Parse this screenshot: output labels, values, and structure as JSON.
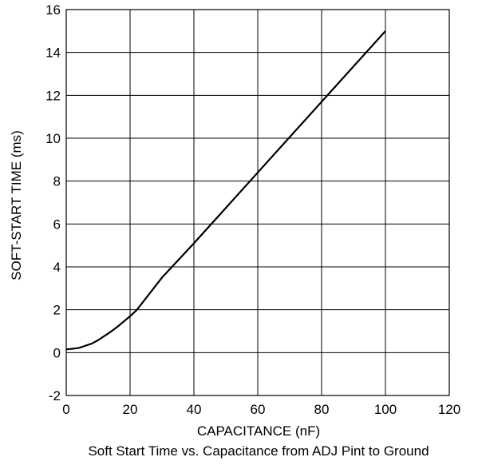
{
  "chart_data": {
    "type": "line",
    "title": "",
    "caption": "Soft Start Time vs. Capacitance from ADJ Pint to Ground",
    "xlabel": "CAPACITANCE (nF)",
    "ylabel": "SOFT-START TIME (ms)",
    "xlim": [
      0,
      120
    ],
    "ylim": [
      -2,
      16
    ],
    "xticks": [
      0,
      20,
      40,
      60,
      80,
      100,
      120
    ],
    "yticks": [
      -2,
      0,
      2,
      4,
      6,
      8,
      10,
      12,
      14,
      16
    ],
    "xtick_labels": [
      "0",
      "20",
      "40",
      "60",
      "80",
      "100",
      "120"
    ],
    "ytick_labels": [
      "-2",
      "0",
      "2",
      "4",
      "6",
      "8",
      "10",
      "12",
      "14",
      "16"
    ],
    "grid": true,
    "line_color": "#000000",
    "series": [
      {
        "x": [
          0,
          2,
          4,
          6,
          8,
          10,
          12,
          14,
          16,
          18,
          20,
          22,
          30,
          40,
          50,
          60,
          70,
          80,
          90,
          100
        ],
        "y": [
          0.15,
          0.18,
          0.22,
          0.32,
          0.42,
          0.58,
          0.78,
          0.98,
          1.2,
          1.45,
          1.7,
          1.97,
          3.5,
          5.1,
          6.75,
          8.4,
          10.05,
          11.7,
          13.35,
          15.0
        ]
      }
    ]
  }
}
